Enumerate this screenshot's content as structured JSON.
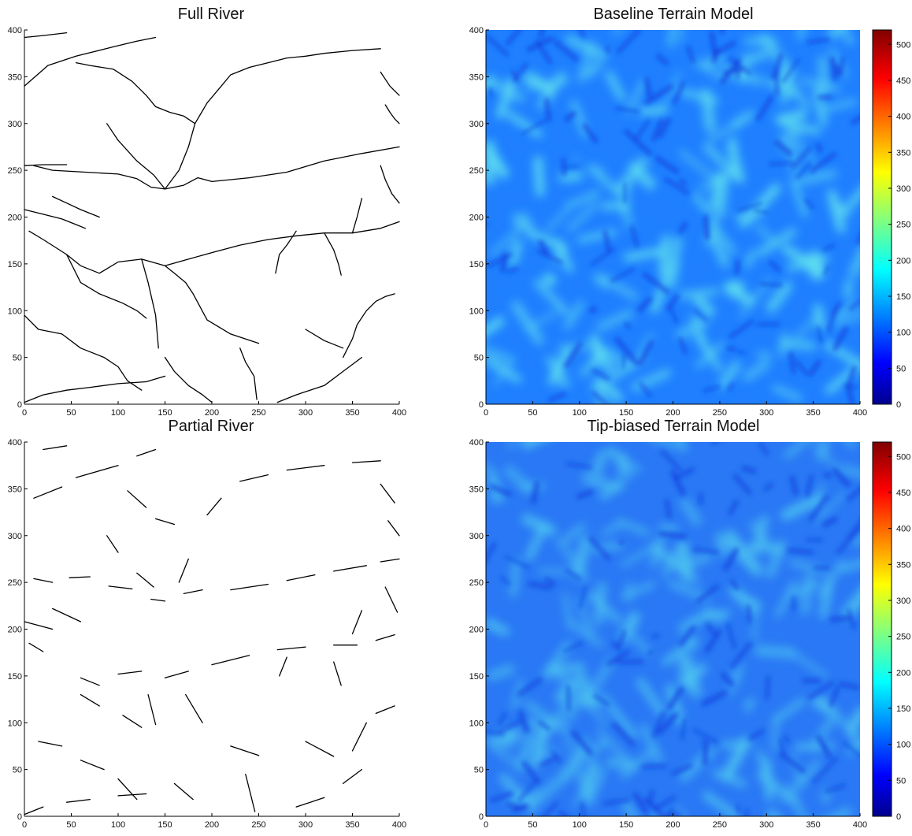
{
  "chart_data": [
    {
      "type": "line",
      "title": "Full River",
      "xlim": [
        0,
        400
      ],
      "ylim": [
        0,
        400
      ],
      "x_ticks": [
        0,
        50,
        100,
        150,
        200,
        250,
        300,
        350,
        400
      ],
      "y_ticks": [
        0,
        50,
        100,
        150,
        200,
        250,
        300,
        350,
        400
      ],
      "line_color": "#000000",
      "series": [
        {
          "x": [
            0,
            20,
            45
          ],
          "y": [
            255,
            256,
            256
          ]
        },
        {
          "x": [
            0,
            25,
            55,
            95,
            120,
            140
          ],
          "y": [
            340,
            362,
            372,
            382,
            388,
            392
          ]
        },
        {
          "x": [
            0,
            20,
            45
          ],
          "y": [
            392,
            394,
            397
          ]
        },
        {
          "x": [
            10,
            30,
            65,
            100,
            120,
            135,
            150
          ],
          "y": [
            255,
            250,
            248,
            246,
            241,
            232,
            230
          ]
        },
        {
          "x": [
            150,
            170,
            185,
            200,
            240,
            280,
            320,
            360,
            400
          ],
          "y": [
            230,
            234,
            242,
            238,
            242,
            248,
            260,
            268,
            275
          ]
        },
        {
          "x": [
            150,
            138,
            120,
            100,
            88
          ],
          "y": [
            230,
            245,
            260,
            282,
            300
          ]
        },
        {
          "x": [
            150,
            165,
            175,
            182
          ],
          "y": [
            230,
            250,
            275,
            300
          ]
        },
        {
          "x": [
            182,
            195,
            210,
            220,
            240,
            260,
            280,
            300,
            320,
            350,
            380
          ],
          "y": [
            300,
            322,
            340,
            352,
            360,
            365,
            370,
            372,
            375,
            378,
            380
          ]
        },
        {
          "x": [
            182,
            170,
            155,
            140
          ],
          "y": [
            300,
            308,
            312,
            318
          ]
        },
        {
          "x": [
            140,
            130,
            115,
            95,
            70,
            55
          ],
          "y": [
            318,
            330,
            345,
            358,
            362,
            365
          ]
        },
        {
          "x": [
            30,
            45,
            60,
            80
          ],
          "y": [
            222,
            215,
            208,
            200
          ]
        },
        {
          "x": [
            0,
            20,
            40,
            55,
            65
          ],
          "y": [
            208,
            203,
            198,
            192,
            188
          ]
        },
        {
          "x": [
            5,
            20,
            45,
            60,
            80,
            100,
            125,
            150
          ],
          "y": [
            185,
            176,
            160,
            148,
            140,
            152,
            155,
            148
          ]
        },
        {
          "x": [
            150,
            175,
            200,
            230,
            260,
            290,
            320,
            350,
            380,
            400
          ],
          "y": [
            148,
            155,
            162,
            170,
            176,
            180,
            183,
            183,
            188,
            195
          ]
        },
        {
          "x": [
            45,
            60,
            80,
            105,
            120,
            130
          ],
          "y": [
            160,
            130,
            118,
            108,
            100,
            92
          ]
        },
        {
          "x": [
            125,
            132,
            140,
            143
          ],
          "y": [
            155,
            130,
            95,
            60
          ]
        },
        {
          "x": [
            150,
            160,
            172,
            180,
            195,
            220,
            250
          ],
          "y": [
            148,
            140,
            130,
            118,
            90,
            75,
            65
          ]
        },
        {
          "x": [
            0,
            15,
            40,
            60,
            85,
            100,
            110,
            125
          ],
          "y": [
            95,
            80,
            75,
            60,
            50,
            40,
            25,
            15
          ]
        },
        {
          "x": [
            0,
            20,
            45,
            70,
            100,
            130,
            150
          ],
          "y": [
            2,
            10,
            15,
            18,
            22,
            24,
            30
          ]
        },
        {
          "x": [
            150,
            160,
            175,
            190,
            200
          ],
          "y": [
            50,
            35,
            20,
            10,
            2
          ]
        },
        {
          "x": [
            230,
            236,
            245,
            248
          ],
          "y": [
            60,
            45,
            30,
            5
          ]
        },
        {
          "x": [
            270,
            290,
            320,
            340,
            360
          ],
          "y": [
            2,
            10,
            20,
            35,
            50
          ]
        },
        {
          "x": [
            340,
            350,
            355,
            365,
            375,
            385,
            395
          ],
          "y": [
            50,
            70,
            85,
            100,
            110,
            115,
            118
          ]
        },
        {
          "x": [
            300,
            320,
            340
          ],
          "y": [
            80,
            68,
            60
          ]
        },
        {
          "x": [
            290,
            280,
            272,
            268
          ],
          "y": [
            185,
            170,
            160,
            140
          ]
        },
        {
          "x": [
            320,
            330,
            335,
            338
          ],
          "y": [
            183,
            165,
            150,
            138
          ]
        },
        {
          "x": [
            350,
            355,
            360
          ],
          "y": [
            183,
            200,
            220
          ]
        },
        {
          "x": [
            380,
            390,
            400
          ],
          "y": [
            355,
            340,
            330
          ]
        },
        {
          "x": [
            385,
            390,
            395,
            400
          ],
          "y": [
            320,
            312,
            305,
            300
          ]
        },
        {
          "x": [
            380,
            385,
            392,
            400
          ],
          "y": [
            255,
            240,
            225,
            215
          ]
        }
      ]
    },
    {
      "type": "heatmap",
      "title": "Baseline Terrain Model",
      "xlim": [
        0,
        400
      ],
      "ylim": [
        0,
        400
      ],
      "x_ticks": [
        0,
        50,
        100,
        150,
        200,
        250,
        300,
        350,
        400
      ],
      "y_ticks": [
        0,
        50,
        100,
        150,
        200,
        250,
        300,
        350,
        400
      ],
      "colorbar": {
        "min": 0,
        "max": 520,
        "ticks": [
          0,
          50,
          100,
          150,
          200,
          250,
          300,
          350,
          400,
          450,
          500
        ],
        "colormap": "jet"
      },
      "background_color": "#1f7fff",
      "highlight_color": "#5fe0f0"
    },
    {
      "type": "line",
      "title": "Partial River",
      "xlim": [
        0,
        400
      ],
      "ylim": [
        0,
        400
      ],
      "x_ticks": [
        0,
        50,
        100,
        150,
        200,
        250,
        300,
        350,
        400
      ],
      "y_ticks": [
        0,
        50,
        100,
        150,
        200,
        250,
        300,
        350,
        400
      ],
      "line_color": "#000000",
      "series": [
        {
          "x": [
            10,
            40
          ],
          "y": [
            340,
            352
          ]
        },
        {
          "x": [
            55,
            100
          ],
          "y": [
            362,
            375
          ]
        },
        {
          "x": [
            120,
            140
          ],
          "y": [
            385,
            392
          ]
        },
        {
          "x": [
            20,
            45
          ],
          "y": [
            392,
            396
          ]
        },
        {
          "x": [
            48,
            70
          ],
          "y": [
            255,
            256
          ]
        },
        {
          "x": [
            10,
            30
          ],
          "y": [
            254,
            250
          ]
        },
        {
          "x": [
            90,
            115
          ],
          "y": [
            246,
            243
          ]
        },
        {
          "x": [
            135,
            150
          ],
          "y": [
            232,
            230
          ]
        },
        {
          "x": [
            170,
            190
          ],
          "y": [
            238,
            242
          ]
        },
        {
          "x": [
            220,
            260
          ],
          "y": [
            242,
            248
          ]
        },
        {
          "x": [
            280,
            310
          ],
          "y": [
            252,
            258
          ]
        },
        {
          "x": [
            330,
            365
          ],
          "y": [
            262,
            268
          ]
        },
        {
          "x": [
            380,
            400
          ],
          "y": [
            272,
            275
          ]
        },
        {
          "x": [
            88,
            100
          ],
          "y": [
            300,
            282
          ]
        },
        {
          "x": [
            120,
            138
          ],
          "y": [
            260,
            245
          ]
        },
        {
          "x": [
            165,
            175
          ],
          "y": [
            250,
            275
          ]
        },
        {
          "x": [
            195,
            210
          ],
          "y": [
            322,
            340
          ]
        },
        {
          "x": [
            230,
            260
          ],
          "y": [
            358,
            365
          ]
        },
        {
          "x": [
            280,
            320
          ],
          "y": [
            370,
            375
          ]
        },
        {
          "x": [
            350,
            380
          ],
          "y": [
            378,
            380
          ]
        },
        {
          "x": [
            160,
            140
          ],
          "y": [
            312,
            318
          ]
        },
        {
          "x": [
            130,
            110
          ],
          "y": [
            330,
            348
          ]
        },
        {
          "x": [
            30,
            60
          ],
          "y": [
            222,
            208
          ]
        },
        {
          "x": [
            0,
            30
          ],
          "y": [
            208,
            200
          ]
        },
        {
          "x": [
            5,
            20
          ],
          "y": [
            185,
            176
          ]
        },
        {
          "x": [
            60,
            80
          ],
          "y": [
            148,
            140
          ]
        },
        {
          "x": [
            100,
            125
          ],
          "y": [
            152,
            155
          ]
        },
        {
          "x": [
            150,
            175
          ],
          "y": [
            148,
            155
          ]
        },
        {
          "x": [
            200,
            240
          ],
          "y": [
            162,
            172
          ]
        },
        {
          "x": [
            270,
            300
          ],
          "y": [
            178,
            181
          ]
        },
        {
          "x": [
            330,
            355
          ],
          "y": [
            183,
            183
          ]
        },
        {
          "x": [
            375,
            395
          ],
          "y": [
            188,
            194
          ]
        },
        {
          "x": [
            60,
            80
          ],
          "y": [
            130,
            118
          ]
        },
        {
          "x": [
            105,
            125
          ],
          "y": [
            108,
            95
          ]
        },
        {
          "x": [
            132,
            140
          ],
          "y": [
            130,
            98
          ]
        },
        {
          "x": [
            172,
            190
          ],
          "y": [
            130,
            100
          ]
        },
        {
          "x": [
            220,
            250
          ],
          "y": [
            75,
            65
          ]
        },
        {
          "x": [
            15,
            40
          ],
          "y": [
            80,
            75
          ]
        },
        {
          "x": [
            60,
            85
          ],
          "y": [
            60,
            50
          ]
        },
        {
          "x": [
            100,
            120
          ],
          "y": [
            40,
            18
          ]
        },
        {
          "x": [
            0,
            20
          ],
          "y": [
            2,
            10
          ]
        },
        {
          "x": [
            45,
            70
          ],
          "y": [
            15,
            18
          ]
        },
        {
          "x": [
            100,
            130
          ],
          "y": [
            22,
            24
          ]
        },
        {
          "x": [
            160,
            180
          ],
          "y": [
            35,
            18
          ]
        },
        {
          "x": [
            236,
            246
          ],
          "y": [
            45,
            5
          ]
        },
        {
          "x": [
            290,
            320
          ],
          "y": [
            10,
            20
          ]
        },
        {
          "x": [
            340,
            360
          ],
          "y": [
            35,
            50
          ]
        },
        {
          "x": [
            350,
            365
          ],
          "y": [
            70,
            100
          ]
        },
        {
          "x": [
            375,
            395
          ],
          "y": [
            110,
            118
          ]
        },
        {
          "x": [
            300,
            330
          ],
          "y": [
            80,
            64
          ]
        },
        {
          "x": [
            280,
            272
          ],
          "y": [
            170,
            150
          ]
        },
        {
          "x": [
            330,
            338
          ],
          "y": [
            165,
            140
          ]
        },
        {
          "x": [
            350,
            360
          ],
          "y": [
            195,
            220
          ]
        },
        {
          "x": [
            380,
            395
          ],
          "y": [
            355,
            335
          ]
        },
        {
          "x": [
            388,
            400
          ],
          "y": [
            316,
            300
          ]
        },
        {
          "x": [
            385,
            398
          ],
          "y": [
            245,
            218
          ]
        }
      ]
    },
    {
      "type": "heatmap",
      "title": "Tip-biased Terrain Model",
      "xlim": [
        0,
        400
      ],
      "ylim": [
        0,
        400
      ],
      "x_ticks": [
        0,
        50,
        100,
        150,
        200,
        250,
        300,
        350,
        400
      ],
      "y_ticks": [
        0,
        50,
        100,
        150,
        200,
        250,
        300,
        350,
        400
      ],
      "colorbar": {
        "min": 0,
        "max": 520,
        "ticks": [
          0,
          50,
          100,
          150,
          200,
          250,
          300,
          350,
          400,
          450,
          500
        ],
        "colormap": "jet"
      },
      "background_color": "#2a78f5",
      "highlight_color": "#4fc8f0"
    }
  ]
}
